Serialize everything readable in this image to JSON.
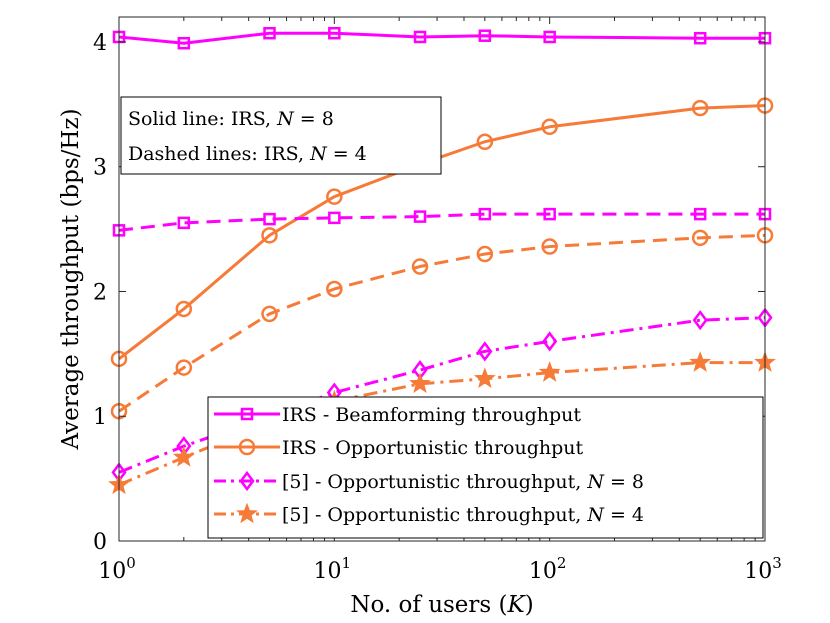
{
  "chart_data": {
    "type": "line",
    "xlabel": "No. of users (K)",
    "ylabel": "Average throughput (bps/Hz)",
    "x_scale": "log",
    "xlim": [
      1,
      1000
    ],
    "ylim": [
      0,
      4.2
    ],
    "x_ticks": [
      1,
      10,
      100,
      1000
    ],
    "x_tick_labels": [
      {
        "base": "10",
        "exp": "0"
      },
      {
        "base": "10",
        "exp": "1"
      },
      {
        "base": "10",
        "exp": "2"
      },
      {
        "base": "10",
        "exp": "3"
      }
    ],
    "y_ticks": [
      0,
      1,
      2,
      3,
      4
    ],
    "y_tick_labels": [
      "0",
      "1",
      "2",
      "3",
      "4"
    ],
    "x": [
      1,
      2,
      5,
      10,
      25,
      50,
      100,
      500,
      1000
    ],
    "series": [
      {
        "name": "IRS - Beamforming throughput",
        "color": "#ff00ff",
        "style": "solid",
        "marker": "square",
        "values": [
          4.04,
          3.99,
          4.07,
          4.07,
          4.04,
          4.05,
          4.04,
          4.03,
          4.03
        ]
      },
      {
        "name": "IRS - Opportunistic throughput",
        "color": "#f77b38",
        "style": "solid",
        "marker": "circle",
        "values": [
          1.46,
          1.86,
          2.45,
          2.76,
          3.02,
          3.2,
          3.32,
          3.47,
          3.49
        ]
      },
      {
        "name": "IRS - Beamforming throughput",
        "color": "#ff00ff",
        "style": "dashed",
        "marker": "square",
        "values": [
          2.49,
          2.55,
          2.58,
          2.59,
          2.6,
          2.62,
          2.62,
          2.62,
          2.62
        ]
      },
      {
        "name": "IRS - Opportunistic throughput",
        "color": "#f77b38",
        "style": "dashed",
        "marker": "circle",
        "values": [
          1.04,
          1.39,
          1.82,
          2.02,
          2.2,
          2.3,
          2.36,
          2.43,
          2.45
        ]
      },
      {
        "name": "[5] - Opportunistic throughput, N = 8",
        "color": "#ff00ff",
        "style": "dashdot",
        "marker": "diamond",
        "values": [
          0.55,
          0.76,
          1.0,
          1.19,
          1.37,
          1.52,
          1.6,
          1.77,
          1.79
        ]
      },
      {
        "name": "[5] - Opportunistic throughput, N = 4",
        "color": "#f77b38",
        "style": "dashdot",
        "marker": "star",
        "values": [
          0.45,
          0.67,
          0.95,
          1.12,
          1.26,
          1.3,
          1.35,
          1.43,
          1.43
        ]
      }
    ],
    "legend": {
      "placement": "bottom-right",
      "entries": [
        {
          "text": "IRS - Beamforming throughput",
          "color": "#ff00ff",
          "style": "solid",
          "marker": "square"
        },
        {
          "text": "IRS - Opportunistic throughput",
          "color": "#f77b38",
          "style": "solid",
          "marker": "circle"
        },
        {
          "text": "[5] - Opportunistic throughput, N = 8",
          "color": "#ff00ff",
          "style": "dashdot",
          "marker": "diamond"
        },
        {
          "text": "[5] - Opportunistic throughput, N = 4",
          "color": "#f77b38",
          "style": "dashdot",
          "marker": "star"
        }
      ]
    },
    "annotation": {
      "placement": "top-left",
      "lines": [
        "Solid line: IRS, N = 8",
        "Dashed lines: IRS, N = 4"
      ]
    },
    "grid": false
  }
}
